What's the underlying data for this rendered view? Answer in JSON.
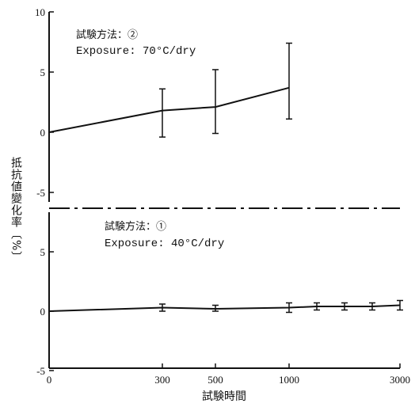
{
  "chart_data": [
    {
      "type": "line",
      "annotation_method": "試験方法：②",
      "annotation_exposure": "Exposure: 70°C/dry",
      "ylim": [
        -5,
        10
      ],
      "yticks": [
        "10",
        "5",
        "0",
        "-5"
      ],
      "ytick_values": [
        10,
        5,
        0,
        -5
      ],
      "x": [
        0,
        300,
        500,
        1000
      ],
      "series": [
        {
          "values": [
            0,
            1.8,
            2.1,
            3.7
          ],
          "error_low": [
            null,
            -0.4,
            -0.1,
            1.1
          ],
          "error_high": [
            null,
            3.6,
            5.2,
            7.4
          ]
        }
      ]
    },
    {
      "type": "line",
      "annotation_method": "試験方法：①",
      "annotation_exposure": "Exposure: 40°C/dry",
      "ylim": [
        -5,
        9
      ],
      "yticks": [
        "5",
        "0",
        "-5"
      ],
      "ytick_values": [
        5,
        0,
        -5
      ],
      "x": [
        0,
        300,
        500,
        1000,
        1500,
        2000,
        2500,
        3000
      ],
      "series": [
        {
          "values": [
            0,
            0.3,
            0.2,
            0.3,
            0.4,
            0.4,
            0.4,
            0.5
          ],
          "error_low": [
            null,
            0.0,
            0.0,
            -0.1,
            0.1,
            0.1,
            0.1,
            0.1
          ],
          "error_high": [
            null,
            0.6,
            0.5,
            0.7,
            0.7,
            0.7,
            0.7,
            0.9
          ]
        }
      ]
    }
  ],
  "xaxis": {
    "label": "試験時間",
    "ticks": [
      0,
      300,
      500,
      1000,
      3000
    ],
    "tick_labels": [
      "0",
      "300",
      "500",
      "1000",
      "3000"
    ]
  },
  "ylabel": "抵抗値變化率〔%〕"
}
